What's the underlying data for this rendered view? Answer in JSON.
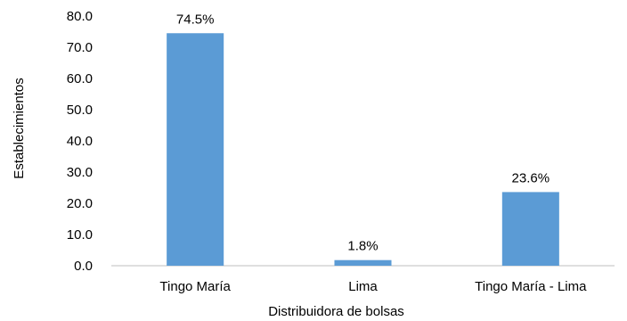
{
  "chart_data": {
    "type": "bar",
    "categories": [
      "Tingo María",
      "Lima",
      "Tingo María - Lima"
    ],
    "values": [
      74.5,
      1.8,
      23.6
    ],
    "data_labels": [
      "74.5%",
      "1.8%",
      "23.6%"
    ],
    "xlabel": "Distribuidora de bolsas",
    "ylabel": "Establecimientos",
    "ylim": [
      0,
      80
    ],
    "yticks": [
      "0.0",
      "10.0",
      "20.0",
      "30.0",
      "40.0",
      "50.0",
      "60.0",
      "70.0",
      "80.0"
    ],
    "bar_color": "#5B9BD5",
    "grid": false,
    "legend": "none"
  }
}
